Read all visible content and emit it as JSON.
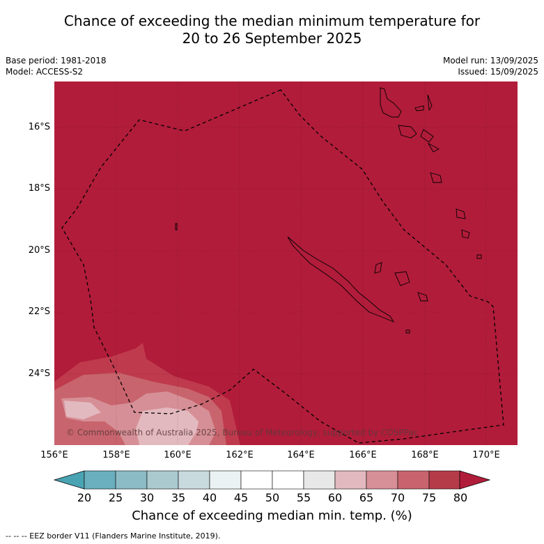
{
  "title_line1": "Chance of exceeding the median minimum temperature for",
  "title_line2": "20 to 26 September 2025",
  "base_period": "Base period: 1981-2018",
  "model": "Model: ACCESS-S2",
  "model_run": "Model run: 13/09/2025",
  "issued": "Issued: 15/09/2025",
  "lat_ticks": [
    "16°S",
    "18°S",
    "20°S",
    "22°S",
    "24°S"
  ],
  "lon_ticks": [
    "156°E",
    "158°E",
    "160°E",
    "162°E",
    "164°E",
    "166°E",
    "168°E",
    "170°E"
  ],
  "copyright": "© Commonwealth of Australia 2025, Bureau of Meteorology, supported by COSPPac",
  "colorbar": {
    "labels": [
      "20",
      "25",
      "30",
      "35",
      "40",
      "45",
      "50",
      "55",
      "60",
      "65",
      "70",
      "75",
      "80"
    ],
    "colors": [
      "#4aa3b2",
      "#6aafbd",
      "#8bbbc5",
      "#aacad0",
      "#c9dade",
      "#ebf2f3",
      "#ffffff",
      "#ffffff",
      "#e8e8e8",
      "#e2b9be",
      "#d68f96",
      "#c8646d",
      "#b53b49",
      "#b11c3a"
    ],
    "title": "Chance of exceeding median min. temp. (%)"
  },
  "legend_note": "--  --  -- EEZ border V11 (Flanders Marine Institute, 2019).",
  "map_colors": {
    "dominant": "#b11c3a",
    "band_75": "#bf3a4d",
    "band_70": "#c8646d",
    "band_65": "#d68f96",
    "band_60": "#e2b9be"
  }
}
